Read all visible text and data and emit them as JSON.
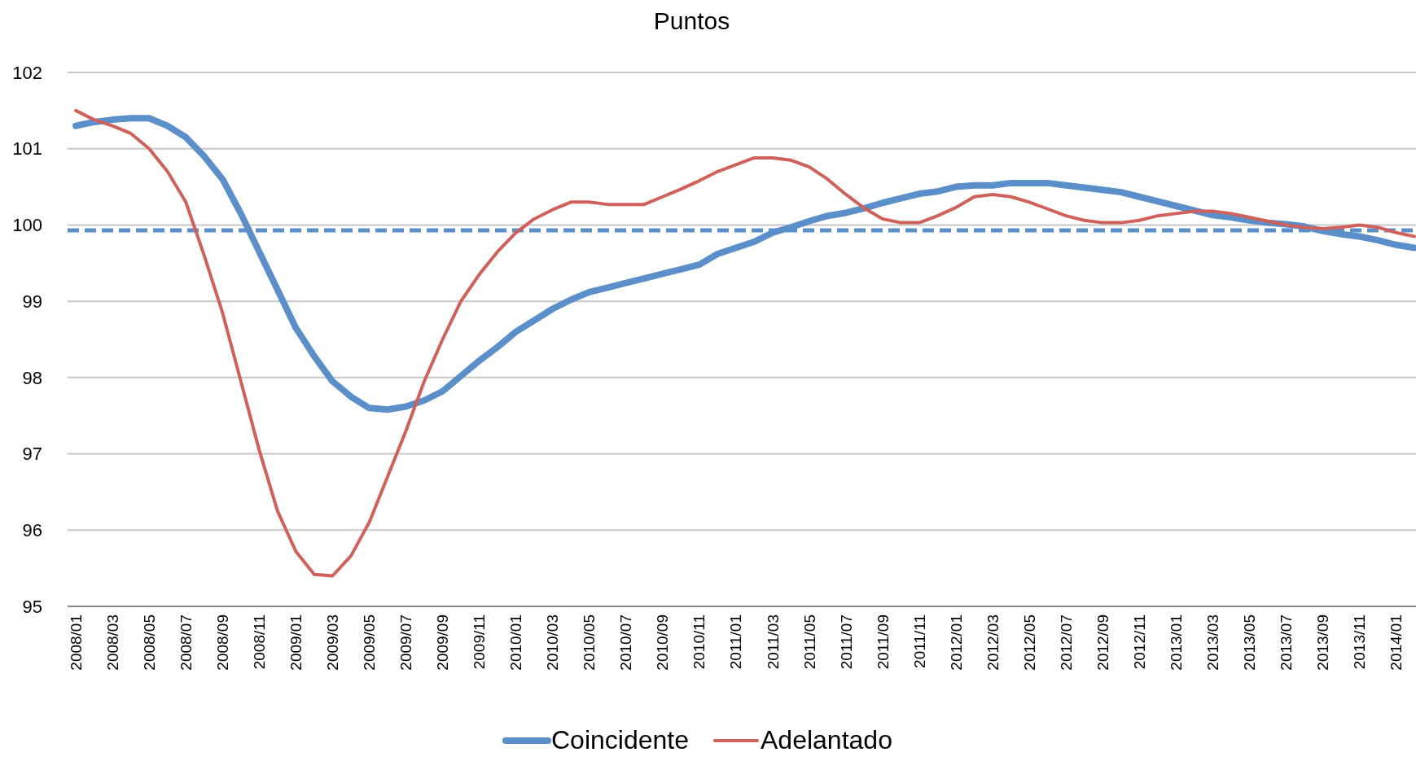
{
  "chart_data": {
    "type": "line",
    "title": "Puntos",
    "categories": [
      "2008/01",
      null,
      "2008/03",
      null,
      "2008/05",
      null,
      "2008/07",
      null,
      "2008/09",
      null,
      "2008/11",
      null,
      "2009/01",
      null,
      "2009/03",
      null,
      "2009/05",
      null,
      "2009/07",
      null,
      "2009/09",
      null,
      "2009/11",
      null,
      "2010/01",
      null,
      "2010/03",
      null,
      "2010/05",
      null,
      "2010/07",
      null,
      "2010/09",
      null,
      "2010/11",
      null,
      "2011/01",
      null,
      "2011/03",
      null,
      "2011/05",
      null,
      "2011/07",
      null,
      "2011/09",
      null,
      "2011/11",
      null,
      "2012/01",
      null,
      "2012/03",
      null,
      "2012/05",
      null,
      "2012/07",
      null,
      "2012/09",
      null,
      "2012/11",
      null,
      "2013/01",
      null,
      "2013/03",
      null,
      "2013/05",
      null,
      "2013/07",
      null,
      "2013/09",
      null,
      "2013/11",
      null,
      "2014/01",
      null
    ],
    "series": [
      {
        "name": "Coincidente",
        "color": "#5b8fc9",
        "values": [
          101.3,
          101.35,
          101.38,
          101.4,
          101.4,
          101.3,
          101.15,
          100.9,
          100.6,
          100.15,
          99.65,
          99.15,
          98.65,
          98.28,
          97.95,
          97.75,
          97.6,
          97.58,
          97.62,
          97.7,
          97.82,
          98.02,
          98.22,
          98.4,
          98.6,
          98.75,
          98.9,
          99.02,
          99.12,
          99.18,
          99.24,
          99.3,
          99.36,
          99.42,
          99.48,
          99.62,
          99.7,
          99.78,
          99.9,
          99.97,
          100.05,
          100.12,
          100.16,
          100.22,
          100.29,
          100.35,
          100.41,
          100.44,
          100.5,
          100.52,
          100.52,
          100.55,
          100.55,
          100.55,
          100.52,
          100.49,
          100.46,
          100.43,
          100.37,
          100.31,
          100.25,
          100.19,
          100.13,
          100.1,
          100.06,
          100.03,
          100.01,
          99.98,
          99.92,
          99.88,
          99.85,
          99.8,
          99.74,
          99.7
        ]
      },
      {
        "name": "Adelantado",
        "color": "#d0605a",
        "values": [
          101.5,
          101.38,
          101.3,
          101.2,
          101.0,
          100.7,
          100.3,
          99.6,
          98.85,
          97.95,
          97.05,
          96.25,
          95.72,
          95.42,
          95.4,
          95.66,
          96.1,
          96.7,
          97.3,
          97.95,
          98.5,
          99.0,
          99.35,
          99.65,
          99.9,
          100.08,
          100.2,
          100.3,
          100.3,
          100.27,
          100.27,
          100.27,
          100.37,
          100.47,
          100.58,
          100.7,
          100.79,
          100.88,
          100.88,
          100.85,
          100.76,
          100.6,
          100.4,
          100.22,
          100.08,
          100.03,
          100.03,
          100.12,
          100.23,
          100.37,
          100.4,
          100.37,
          100.3,
          100.21,
          100.12,
          100.06,
          100.03,
          100.03,
          100.06,
          100.12,
          100.15,
          100.18,
          100.18,
          100.15,
          100.1,
          100.05,
          100.0,
          99.97,
          99.95,
          99.97,
          100.0,
          99.97,
          99.9,
          99.85
        ]
      }
    ],
    "ylim": [
      95,
      102
    ],
    "yticks": [
      95,
      96,
      97,
      98,
      99,
      100,
      101,
      102
    ],
    "ref_lines": [
      {
        "axis": "y",
        "value": 99.93,
        "color": "#5b8fc9",
        "line_style": "dashed"
      }
    ],
    "grid": "y",
    "legend": "bottom"
  }
}
